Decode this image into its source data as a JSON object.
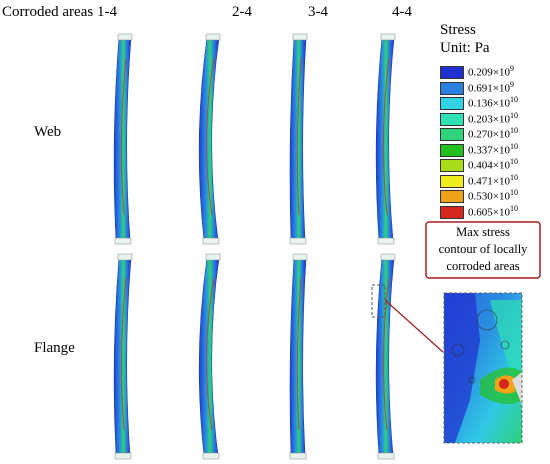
{
  "columns": [
    "Corroded areas 1-4",
    "2-4",
    "3-4",
    "4-4"
  ],
  "rows": [
    "Web",
    "Flange"
  ],
  "legend": {
    "title": "Stress",
    "unit": "Unit:  Pa",
    "items": [
      {
        "mantissa": "0.209×10",
        "exponent": "9",
        "color": "#1f2fd0"
      },
      {
        "mantissa": "0.691×10",
        "exponent": "9",
        "color": "#2a7fe0"
      },
      {
        "mantissa": "0.136×10",
        "exponent": "10",
        "color": "#30d4e6"
      },
      {
        "mantissa": "0.203×10",
        "exponent": "10",
        "color": "#2ee0b4"
      },
      {
        "mantissa": "0.270×10",
        "exponent": "10",
        "color": "#2ed47a"
      },
      {
        "mantissa": "0.337×10",
        "exponent": "10",
        "color": "#22c01e"
      },
      {
        "mantissa": "0.404×10",
        "exponent": "10",
        "color": "#a8dc1a"
      },
      {
        "mantissa": "0.471×10",
        "exponent": "10",
        "color": "#f0ee1e"
      },
      {
        "mantissa": "0.530×10",
        "exponent": "10",
        "color": "#f0a21a"
      },
      {
        "mantissa": "0.605×10",
        "exponent": "10",
        "color": "#d4261c"
      }
    ]
  },
  "callout": [
    "Max stress",
    "contour of locally",
    "corroded areas"
  ]
}
